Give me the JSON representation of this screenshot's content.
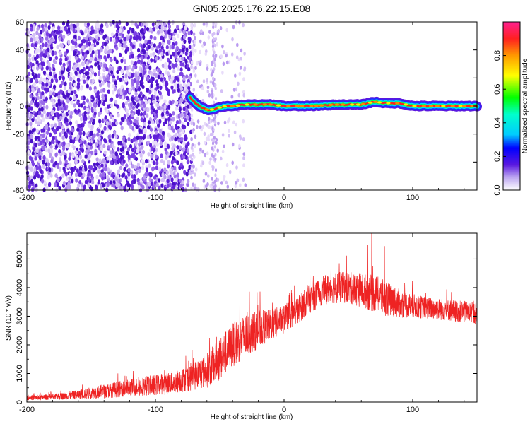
{
  "title": "GN05.2025.176.22.15.E08",
  "colors": {
    "snr_line": "#ee2222",
    "tf_weak": "#7a2fe0",
    "tf_strong": "#ff2020"
  },
  "chart_data": [
    {
      "type": "heatmap",
      "title": "GN05.2025.176.22.15.E08",
      "xlabel": "Height of straight line (km)",
      "ylabel": "Frequency (Hz)",
      "xlim": [
        -200,
        150
      ],
      "ylim": [
        -60,
        60
      ],
      "x_ticks": [
        "-200",
        "-100",
        "0",
        "100"
      ],
      "y_ticks": [
        "-60",
        "-40",
        "-20",
        "0",
        "20",
        "40",
        "60"
      ],
      "noise_region_x": [
        -200,
        -72
      ],
      "sparse_noise_x": [
        -72,
        -30
      ],
      "signal_start_x": -73,
      "signal_path": [
        {
          "x": -73,
          "y": 6
        },
        {
          "x": -70,
          "y": 3
        },
        {
          "x": -66,
          "y": 0
        },
        {
          "x": -62,
          "y": -2
        },
        {
          "x": -58,
          "y": -3
        },
        {
          "x": -54,
          "y": -2
        },
        {
          "x": -50,
          "y": -1
        },
        {
          "x": -45,
          "y": 0
        },
        {
          "x": -40,
          "y": 0
        },
        {
          "x": -30,
          "y": 1
        },
        {
          "x": -20,
          "y": 1
        },
        {
          "x": -10,
          "y": 1
        },
        {
          "x": 0,
          "y": 0
        },
        {
          "x": 20,
          "y": 0
        },
        {
          "x": 40,
          "y": 1
        },
        {
          "x": 60,
          "y": 1
        },
        {
          "x": 70,
          "y": 3
        },
        {
          "x": 80,
          "y": 2
        },
        {
          "x": 90,
          "y": 2
        },
        {
          "x": 100,
          "y": 0
        },
        {
          "x": 120,
          "y": 0
        },
        {
          "x": 150,
          "y": 0
        }
      ],
      "colorbar": {
        "label": "Normalized spectral amplitude",
        "range": [
          0,
          1
        ],
        "ticks": [
          "0.0",
          "0.2",
          "0.4",
          "0.6",
          "0.8"
        ]
      }
    },
    {
      "type": "line",
      "xlabel": "Height of straight line (km)",
      "ylabel": "SNR (10 * v/v)",
      "xlim": [
        -200,
        150
      ],
      "ylim": [
        0,
        5900
      ],
      "x_ticks": [
        "-200",
        "-100",
        "0",
        "100"
      ],
      "y_ticks": [
        "0",
        "1000",
        "2000",
        "3000",
        "4000",
        "5000"
      ],
      "envelope": [
        {
          "x": -200,
          "baseline": 150,
          "spread": 150
        },
        {
          "x": -180,
          "baseline": 180,
          "spread": 180
        },
        {
          "x": -160,
          "baseline": 260,
          "spread": 300
        },
        {
          "x": -140,
          "baseline": 380,
          "spread": 450
        },
        {
          "x": -120,
          "baseline": 500,
          "spread": 550
        },
        {
          "x": -100,
          "baseline": 600,
          "spread": 650
        },
        {
          "x": -80,
          "baseline": 750,
          "spread": 750
        },
        {
          "x": -60,
          "baseline": 1100,
          "spread": 1100
        },
        {
          "x": -50,
          "baseline": 1500,
          "spread": 1400
        },
        {
          "x": -40,
          "baseline": 2000,
          "spread": 1400
        },
        {
          "x": -30,
          "baseline": 2300,
          "spread": 1400
        },
        {
          "x": -20,
          "baseline": 2550,
          "spread": 1200
        },
        {
          "x": -10,
          "baseline": 2700,
          "spread": 1000
        },
        {
          "x": 0,
          "baseline": 2900,
          "spread": 900
        },
        {
          "x": 10,
          "baseline": 3200,
          "spread": 900
        },
        {
          "x": 20,
          "baseline": 3600,
          "spread": 900
        },
        {
          "x": 30,
          "baseline": 3900,
          "spread": 900
        },
        {
          "x": 40,
          "baseline": 4000,
          "spread": 1000
        },
        {
          "x": 50,
          "baseline": 4000,
          "spread": 1000
        },
        {
          "x": 60,
          "baseline": 3900,
          "spread": 1100
        },
        {
          "x": 70,
          "baseline": 3800,
          "spread": 1200
        },
        {
          "x": 80,
          "baseline": 3600,
          "spread": 1100
        },
        {
          "x": 90,
          "baseline": 3450,
          "spread": 900
        },
        {
          "x": 100,
          "baseline": 3350,
          "spread": 800
        },
        {
          "x": 110,
          "baseline": 3300,
          "spread": 700
        },
        {
          "x": 120,
          "baseline": 3250,
          "spread": 700
        },
        {
          "x": 130,
          "baseline": 3200,
          "spread": 700
        },
        {
          "x": 140,
          "baseline": 3150,
          "spread": 700
        },
        {
          "x": 150,
          "baseline": 3100,
          "spread": 700
        }
      ],
      "peaks": [
        {
          "x": 20,
          "y": 5200
        },
        {
          "x": 65,
          "y": 5500
        },
        {
          "x": 68,
          "y": 5900
        },
        {
          "x": 78,
          "y": 5450
        }
      ]
    }
  ]
}
